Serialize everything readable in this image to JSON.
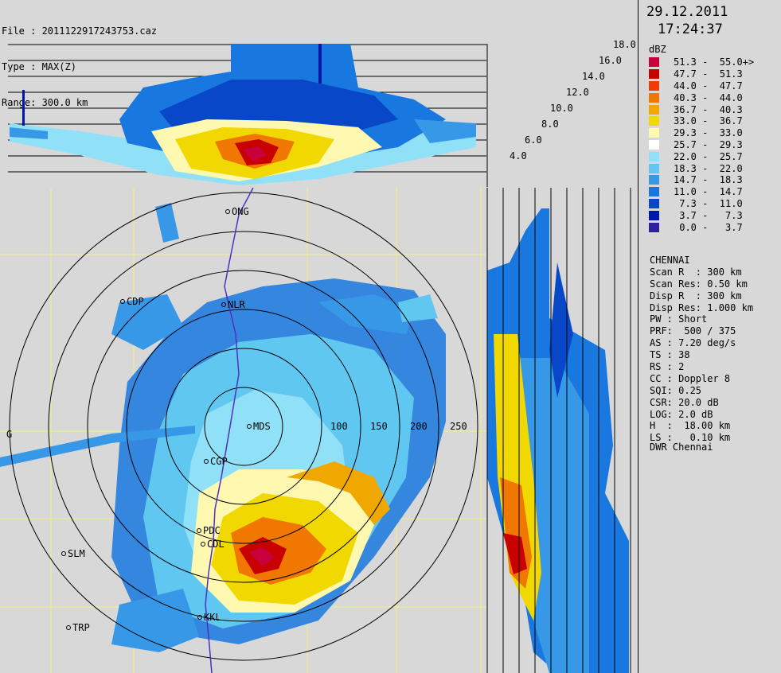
{
  "header": {
    "file_line": "File : 2011122917243753.caz",
    "type_line": "Type : MAX(Z)",
    "range_line": "Range: 300.0 km"
  },
  "datetime": {
    "date": "29.12.2011",
    "time": "17:24:37"
  },
  "legend": {
    "unit": "dBZ",
    "items": [
      {
        "label": "51.3 -  55.0+>",
        "color": "#c8003c"
      },
      {
        "label": "47.7 -  51.3",
        "color": "#c80000"
      },
      {
        "label": "44.0 -  47.7",
        "color": "#f03c00"
      },
      {
        "label": "40.3 -  44.0",
        "color": "#f07800"
      },
      {
        "label": "36.7 -  40.3",
        "color": "#f0a800"
      },
      {
        "label": "33.0 -  36.7",
        "color": "#f0d800"
      },
      {
        "label": "29.3 -  33.0",
        "color": "#fff8b0"
      },
      {
        "label": "25.7 -  29.3",
        "color": "#ffffff"
      },
      {
        "label": "22.0 -  25.7",
        "color": "#90e0f8"
      },
      {
        "label": "18.3 -  22.0",
        "color": "#60c8f0"
      },
      {
        "label": "14.7 -  18.3",
        "color": "#3898e8"
      },
      {
        "label": "11.0 -  14.7",
        "color": "#1878e0"
      },
      {
        "label": " 7.3 -  11.0",
        "color": "#0848c8"
      },
      {
        "label": " 3.7 -   7.3",
        "color": "#0018a8"
      },
      {
        "label": " 0.0 -   3.7",
        "color": "#3020a0"
      }
    ]
  },
  "params": [
    "CHENNAI",
    "Scan R  : 300 km",
    "Scan Res: 0.50 km",
    "Disp R  : 300 km",
    "Disp Res: 1.000 km",
    "PW : Short",
    "PRF:  500 / 375",
    "AS : 7.20 deg/s",
    "TS : 38",
    "RS : 2",
    "CC : Doppler 8",
    "SQI: 0.25",
    "CSR: 20.0 dB",
    "LOG: 2.0 dB",
    "H  :  18.00 km",
    "LS :   0.10 km"
  ],
  "footer": "DWR Chennai",
  "height_labels": [
    "18.0",
    "16.0",
    "14.0",
    "12.0",
    "10.0",
    "8.0",
    "6.0",
    "4.0"
  ],
  "range_ring_labels": [
    "100",
    "150",
    "200",
    "250"
  ],
  "stations": [
    {
      "code": "ONG"
    },
    {
      "code": "CDP"
    },
    {
      "code": "NLR"
    },
    {
      "code": "MDS"
    },
    {
      "code": "CGP"
    },
    {
      "code": "PDC"
    },
    {
      "code": "CDL"
    },
    {
      "code": "SLM"
    },
    {
      "code": "TRP"
    },
    {
      "code": "KKL"
    }
  ],
  "map_letters": {
    "west_edge": "G"
  },
  "palette": {
    "background": "#d8d8d8",
    "grid_line": "#000000",
    "lat_line": "#f0f080",
    "coast": "#5030c0"
  }
}
